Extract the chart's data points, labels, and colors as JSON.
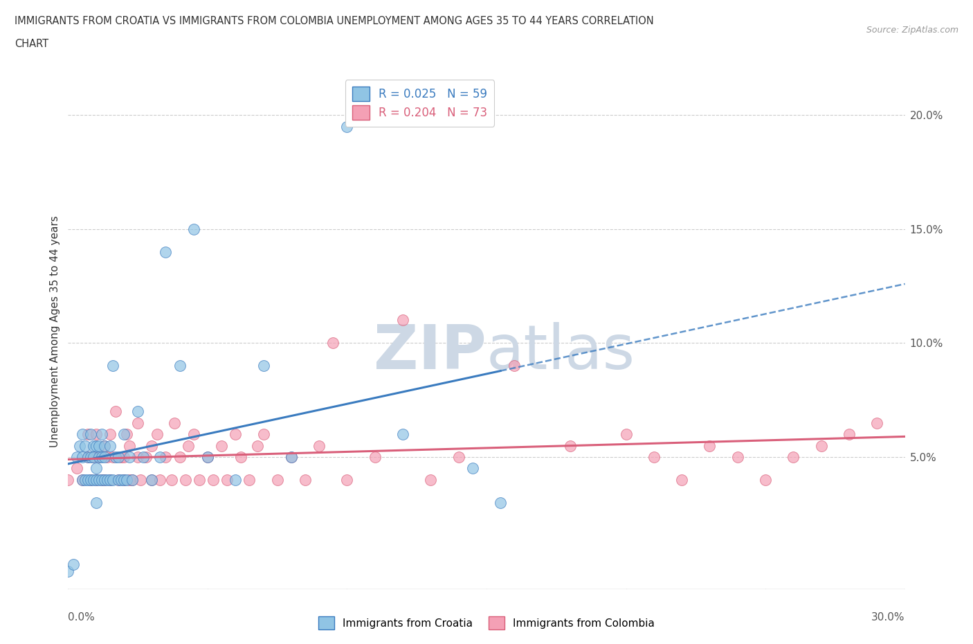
{
  "title_line1": "IMMIGRANTS FROM CROATIA VS IMMIGRANTS FROM COLOMBIA UNEMPLOYMENT AMONG AGES 35 TO 44 YEARS CORRELATION",
  "title_line2": "CHART",
  "source_text": "Source: ZipAtlas.com",
  "ylabel": "Unemployment Among Ages 35 to 44 years",
  "xmin": 0.0,
  "xmax": 0.3,
  "ymin": -0.008,
  "ymax": 0.218,
  "color_croatia": "#90c4e4",
  "color_colombia": "#f4a0b5",
  "color_trendline_croatia": "#3a7bbf",
  "color_trendline_colombia": "#d95f7a",
  "background_color": "#ffffff",
  "grid_color": "#cccccc",
  "watermark_color": "#cdd8e5",
  "croatia_x": [
    0.0,
    0.002,
    0.003,
    0.004,
    0.005,
    0.005,
    0.005,
    0.006,
    0.006,
    0.007,
    0.007,
    0.008,
    0.008,
    0.008,
    0.009,
    0.009,
    0.009,
    0.01,
    0.01,
    0.01,
    0.01,
    0.011,
    0.011,
    0.011,
    0.012,
    0.012,
    0.012,
    0.013,
    0.013,
    0.013,
    0.014,
    0.015,
    0.015,
    0.016,
    0.016,
    0.017,
    0.018,
    0.018,
    0.019,
    0.02,
    0.02,
    0.021,
    0.022,
    0.023,
    0.025,
    0.027,
    0.03,
    0.033,
    0.035,
    0.04,
    0.045,
    0.05,
    0.06,
    0.07,
    0.08,
    0.1,
    0.12,
    0.145,
    0.155
  ],
  "croatia_y": [
    0.0,
    0.003,
    0.05,
    0.055,
    0.04,
    0.05,
    0.06,
    0.04,
    0.055,
    0.04,
    0.05,
    0.04,
    0.05,
    0.06,
    0.04,
    0.05,
    0.055,
    0.03,
    0.04,
    0.045,
    0.055,
    0.04,
    0.05,
    0.055,
    0.04,
    0.05,
    0.06,
    0.04,
    0.05,
    0.055,
    0.04,
    0.04,
    0.055,
    0.04,
    0.09,
    0.05,
    0.04,
    0.05,
    0.04,
    0.04,
    0.06,
    0.04,
    0.05,
    0.04,
    0.07,
    0.05,
    0.04,
    0.05,
    0.14,
    0.09,
    0.15,
    0.05,
    0.04,
    0.09,
    0.05,
    0.195,
    0.06,
    0.045,
    0.03
  ],
  "colombia_x": [
    0.0,
    0.003,
    0.005,
    0.007,
    0.007,
    0.008,
    0.009,
    0.01,
    0.01,
    0.011,
    0.012,
    0.013,
    0.013,
    0.014,
    0.015,
    0.015,
    0.016,
    0.017,
    0.018,
    0.019,
    0.02,
    0.02,
    0.021,
    0.022,
    0.022,
    0.023,
    0.025,
    0.025,
    0.026,
    0.028,
    0.03,
    0.03,
    0.032,
    0.033,
    0.035,
    0.037,
    0.038,
    0.04,
    0.042,
    0.043,
    0.045,
    0.047,
    0.05,
    0.052,
    0.055,
    0.057,
    0.06,
    0.062,
    0.065,
    0.068,
    0.07,
    0.075,
    0.08,
    0.085,
    0.09,
    0.095,
    0.1,
    0.11,
    0.12,
    0.13,
    0.14,
    0.16,
    0.18,
    0.2,
    0.21,
    0.22,
    0.23,
    0.24,
    0.25,
    0.26,
    0.27,
    0.28,
    0.29
  ],
  "colombia_y": [
    0.04,
    0.045,
    0.04,
    0.05,
    0.06,
    0.04,
    0.05,
    0.04,
    0.06,
    0.05,
    0.04,
    0.055,
    0.04,
    0.05,
    0.04,
    0.06,
    0.05,
    0.07,
    0.04,
    0.05,
    0.04,
    0.05,
    0.06,
    0.04,
    0.055,
    0.04,
    0.05,
    0.065,
    0.04,
    0.05,
    0.04,
    0.055,
    0.06,
    0.04,
    0.05,
    0.04,
    0.065,
    0.05,
    0.04,
    0.055,
    0.06,
    0.04,
    0.05,
    0.04,
    0.055,
    0.04,
    0.06,
    0.05,
    0.04,
    0.055,
    0.06,
    0.04,
    0.05,
    0.04,
    0.055,
    0.1,
    0.04,
    0.05,
    0.11,
    0.04,
    0.05,
    0.09,
    0.055,
    0.06,
    0.05,
    0.04,
    0.055,
    0.05,
    0.04,
    0.05,
    0.055,
    0.06,
    0.065
  ],
  "yticks": [
    0.0,
    0.05,
    0.1,
    0.15,
    0.2
  ],
  "ytick_labels": [
    "",
    "5.0%",
    "10.0%",
    "15.0%",
    "20.0%"
  ],
  "xtick_labels_show": [
    "0.0%",
    "30.0%"
  ]
}
